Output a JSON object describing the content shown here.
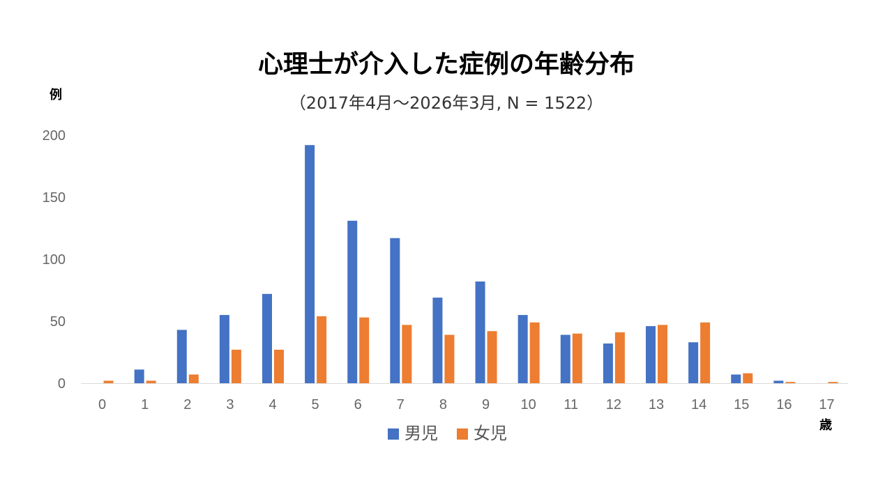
{
  "chart_data": {
    "type": "bar",
    "title": "心理士が介入した症例の年齢分布",
    "subtitle": "（2017年4月～2026年3月, N = 1522）",
    "ylabel": "例",
    "xlabel": "歳",
    "ylim": [
      0,
      200
    ],
    "yticks": [
      0,
      50,
      100,
      150,
      200
    ],
    "grid": false,
    "legend_position": "bottom",
    "categories": [
      "0",
      "1",
      "2",
      "3",
      "4",
      "5",
      "6",
      "7",
      "8",
      "9",
      "10",
      "11",
      "12",
      "13",
      "14",
      "15",
      "16",
      "17"
    ],
    "series": [
      {
        "name": "男児",
        "color": "#4472C4",
        "values": [
          0,
          11,
          43,
          55,
          72,
          192,
          131,
          117,
          69,
          82,
          55,
          39,
          32,
          46,
          33,
          7,
          2,
          0
        ]
      },
      {
        "name": "女児",
        "color": "#ED7D31",
        "values": [
          2,
          2,
          7,
          27,
          27,
          54,
          53,
          47,
          39,
          42,
          49,
          40,
          41,
          47,
          49,
          8,
          1,
          1
        ]
      }
    ]
  }
}
